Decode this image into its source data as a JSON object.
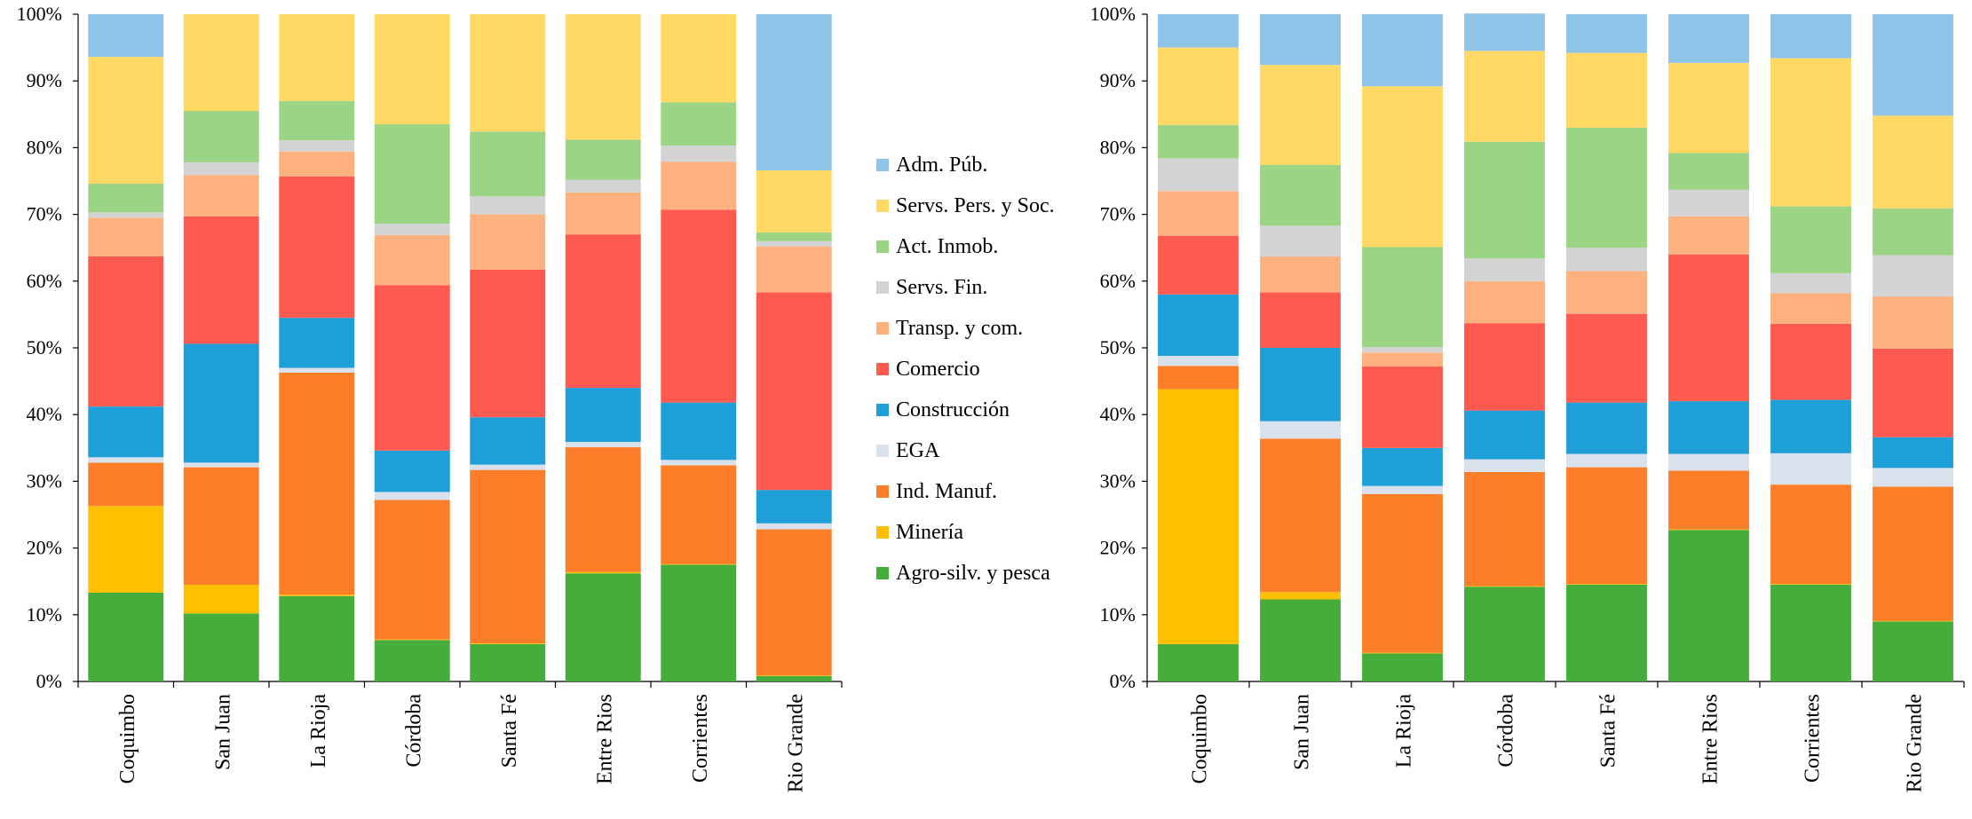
{
  "chart_data": [
    {
      "type": "bar",
      "stacked": true,
      "percent": true,
      "ylim": [
        0,
        100
      ],
      "yticks": [
        "0%",
        "10%",
        "20%",
        "30%",
        "40%",
        "50%",
        "60%",
        "70%",
        "80%",
        "90%",
        "100%"
      ],
      "grid": false,
      "categories": [
        "Coquimbo",
        "San Juan",
        "La Rioja",
        "Córdoba",
        "Santa Fé",
        "Entre Rios",
        "Corrientes",
        "Rio Grande"
      ],
      "series": [
        {
          "name": "Agro-silv. y pesca",
          "color": "#44ad3b",
          "values": [
            13.3,
            10.2,
            12.8,
            6.2,
            5.6,
            16.2,
            17.5,
            0.8
          ]
        },
        {
          "name": "Minería",
          "color": "#ffc000",
          "values": [
            13.0,
            4.3,
            0.2,
            0.1,
            0.1,
            0.2,
            0.1,
            0.1
          ]
        },
        {
          "name": "Ind. Manuf.",
          "color": "#fd7e28",
          "values": [
            6.5,
            17.6,
            33.3,
            20.9,
            26.0,
            18.7,
            14.8,
            21.9
          ]
        },
        {
          "name": "EGA",
          "color": "#d9e1ec",
          "values": [
            0.8,
            0.7,
            0.7,
            1.2,
            0.8,
            0.8,
            0.8,
            0.9
          ]
        },
        {
          "name": "Construcción",
          "color": "#1f9fd8",
          "values": [
            7.6,
            17.8,
            7.5,
            6.2,
            7.1,
            8.1,
            8.6,
            5.0
          ]
        },
        {
          "name": "Comercio",
          "color": "#ff5a4f",
          "values": [
            22.5,
            19.1,
            21.2,
            24.8,
            22.1,
            23.0,
            28.9,
            29.6
          ]
        },
        {
          "name": "Transp. y com.",
          "color": "#fdb17f",
          "values": [
            5.8,
            6.2,
            3.7,
            7.5,
            8.3,
            6.3,
            7.2,
            6.9
          ]
        },
        {
          "name": "Servs. Fin.",
          "color": "#d3d3d3",
          "values": [
            0.8,
            1.9,
            1.7,
            1.7,
            2.7,
            1.9,
            2.4,
            0.8
          ]
        },
        {
          "name": "Act. Inmob.",
          "color": "#9bd484",
          "values": [
            4.3,
            7.7,
            5.9,
            14.9,
            9.7,
            6.0,
            6.5,
            1.3
          ]
        },
        {
          "name": "Servs. Pers. y Soc.",
          "color": "#ffd964",
          "values": [
            19.0,
            14.5,
            13.0,
            16.5,
            17.6,
            18.8,
            13.2,
            9.3
          ]
        },
        {
          "name": "Adm. Púb.",
          "color": "#8fc4e8",
          "values": [
            6.4,
            0.0,
            0.0,
            0.0,
            0.0,
            0.0,
            0.0,
            23.4
          ]
        }
      ]
    },
    {
      "type": "bar",
      "stacked": true,
      "percent": true,
      "ylim": [
        0,
        100
      ],
      "yticks": [
        "0%",
        "10%",
        "20%",
        "30%",
        "40%",
        "50%",
        "60%",
        "70%",
        "80%",
        "90%",
        "100%"
      ],
      "grid": false,
      "categories": [
        "Coquimbo",
        "San Juan",
        "La Rioja",
        "Córdoba",
        "Santa Fé",
        "Entre Rios",
        "Corrientes",
        "Rio Grande"
      ],
      "series": [
        {
          "name": "Agro-silv. y pesca",
          "color": "#44ad3b",
          "values": [
            5.6,
            12.3,
            4.2,
            14.2,
            14.5,
            22.7,
            14.5,
            9.0
          ]
        },
        {
          "name": "Minería",
          "color": "#ffc000",
          "values": [
            38.2,
            1.1,
            0.1,
            0.1,
            0.1,
            0.1,
            0.1,
            0.1
          ]
        },
        {
          "name": "Ind. Manuf.",
          "color": "#fd7e28",
          "values": [
            3.5,
            23.0,
            23.8,
            17.1,
            17.5,
            8.8,
            14.9,
            20.1
          ]
        },
        {
          "name": "EGA",
          "color": "#d9e1ec",
          "values": [
            1.5,
            2.6,
            1.2,
            1.9,
            2.0,
            2.5,
            4.7,
            2.8
          ]
        },
        {
          "name": "Construcción",
          "color": "#1f9fd8",
          "values": [
            9.2,
            11.0,
            5.7,
            7.3,
            7.7,
            7.9,
            8.0,
            4.6
          ]
        },
        {
          "name": "Comercio",
          "color": "#ff5a4f",
          "values": [
            8.8,
            8.3,
            12.2,
            13.1,
            13.3,
            22.0,
            11.4,
            13.3
          ]
        },
        {
          "name": "Transp. y com.",
          "color": "#fdb17f",
          "values": [
            6.7,
            5.4,
            2.1,
            6.3,
            6.4,
            5.7,
            4.6,
            7.8
          ]
        },
        {
          "name": "Servs. Fin.",
          "color": "#d3d3d3",
          "values": [
            4.9,
            4.6,
            0.8,
            3.4,
            3.5,
            4.0,
            3.0,
            6.2
          ]
        },
        {
          "name": "Act. Inmob.",
          "color": "#9bd484",
          "values": [
            5.0,
            9.1,
            15.0,
            17.5,
            18.0,
            5.5,
            10.0,
            7.0
          ]
        },
        {
          "name": "Servs. Pers. y Soc.",
          "color": "#ffd964",
          "values": [
            11.6,
            15.0,
            24.1,
            13.6,
            11.2,
            13.5,
            22.2,
            13.9
          ]
        },
        {
          "name": "Adm. Púb.",
          "color": "#8fc4e8",
          "values": [
            5.0,
            7.6,
            10.8,
            5.6,
            5.8,
            7.3,
            6.6,
            15.2
          ]
        }
      ]
    }
  ],
  "legend": {
    "placement": "center",
    "items": [
      {
        "label": "Adm. Púb.",
        "color": "#8fc4e8"
      },
      {
        "label": "Servs. Pers. y Soc.",
        "color": "#ffd964"
      },
      {
        "label": "Act. Inmob.",
        "color": "#9bd484"
      },
      {
        "label": "Servs. Fin.",
        "color": "#d3d3d3"
      },
      {
        "label": "Transp. y com.",
        "color": "#fdb17f"
      },
      {
        "label": "Comercio",
        "color": "#ff5a4f"
      },
      {
        "label": "Construcción",
        "color": "#1f9fd8"
      },
      {
        "label": "EGA",
        "color": "#d9e1ec"
      },
      {
        "label": "Ind. Manuf.",
        "color": "#fd7e28"
      },
      {
        "label": "Minería",
        "color": "#ffc000"
      },
      {
        "label": "Agro-silv. y pesca",
        "color": "#44ad3b"
      }
    ]
  }
}
